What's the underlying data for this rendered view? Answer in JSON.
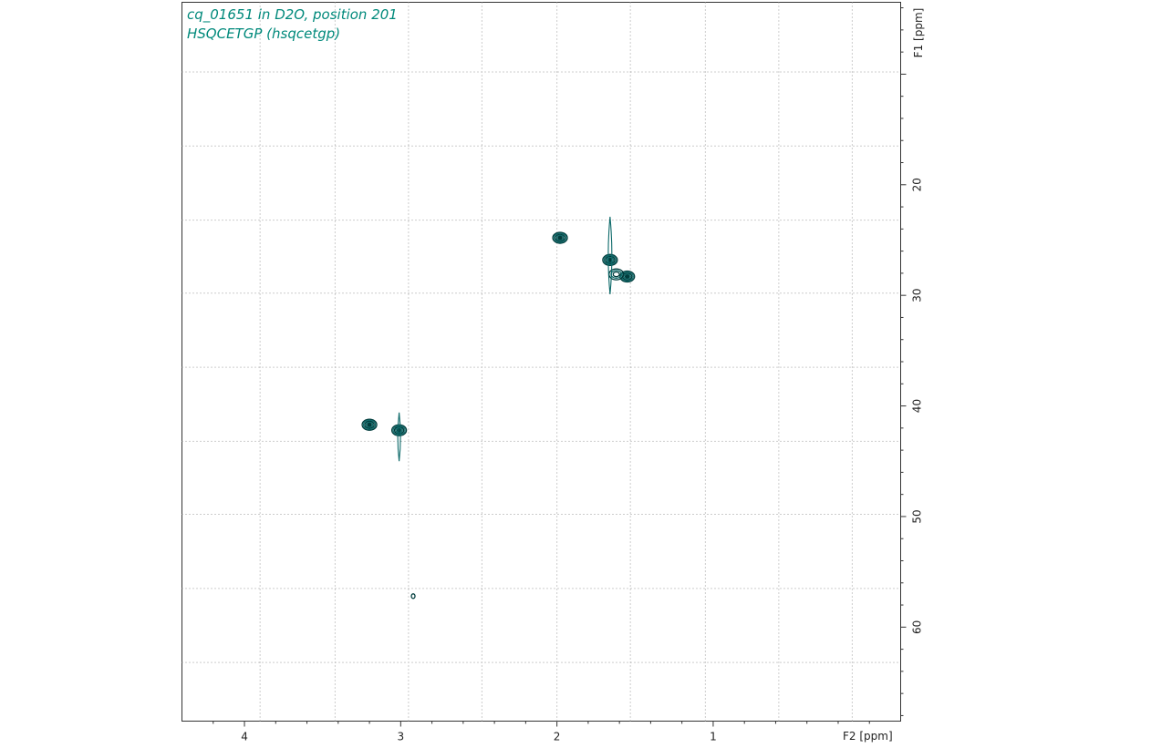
{
  "header": {
    "title": "cq_01651 in D2O, position 201",
    "subtitle": "HSQCETGP (hsqcetgp)"
  },
  "colors": {
    "title": "#00897b",
    "contour_dark": "#003c3c",
    "contour_mid": "#0f6b6b",
    "grid": "#9a9a9a"
  },
  "chart_data": {
    "type": "contour",
    "x_axis_label": "F2 [ppm]",
    "y_axis_label": "F1 [ppm]",
    "xlim": [
      4.4,
      -0.2
    ],
    "ylim": [
      3.5,
      68.5
    ],
    "x_inverted": true,
    "y_inverted": true,
    "x_ticks": [
      4,
      3,
      2,
      1
    ],
    "y_ticks": [
      20,
      30,
      40,
      50,
      60
    ],
    "x_grid": [
      3.9,
      3.42,
      2.95,
      2.48,
      2.0,
      1.53,
      1.05,
      0.58,
      0.11
    ],
    "y_grid": [
      9.8,
      16.5,
      23.2,
      29.8,
      36.5,
      43.2,
      49.8,
      56.5,
      63.2
    ],
    "grid": "dotted",
    "peaks": [
      {
        "x": 1.98,
        "y": 24.8,
        "intensity": "strong"
      },
      {
        "x": 1.66,
        "y": 26.8,
        "intensity": "strong"
      },
      {
        "x": 1.55,
        "y": 28.3,
        "intensity": "strong"
      },
      {
        "x": 1.62,
        "y": 28.1,
        "intensity": "medium"
      },
      {
        "x": 3.2,
        "y": 41.7,
        "intensity": "strong"
      },
      {
        "x": 3.01,
        "y": 42.2,
        "intensity": "strong"
      },
      {
        "x": 2.92,
        "y": 57.2,
        "intensity": "weak"
      }
    ]
  }
}
